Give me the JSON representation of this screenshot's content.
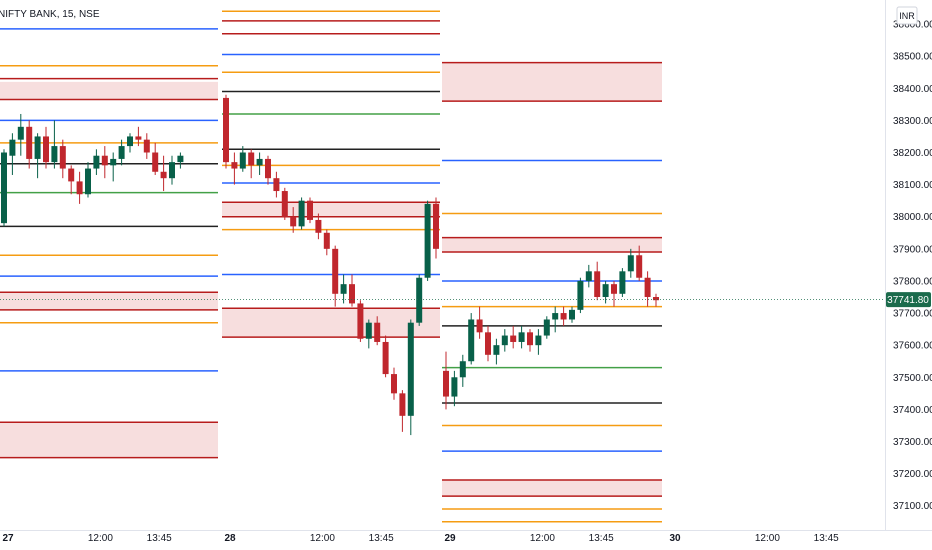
{
  "symbol": "NIFTY BANK, 15, NSE",
  "currency": "INR",
  "last_price_label": "37741.80",
  "colors": {
    "up": "#086049",
    "down": "#c0272d",
    "wick": "#131722",
    "orange": "#f59c12",
    "red": "#b71c1c",
    "blue": "#2962ff",
    "green": "#43a047",
    "black": "#222222",
    "zone": "#f7dede",
    "grid": "#e0e3eb",
    "last_price": "#1b6b4c"
  },
  "chart_data": {
    "type": "candlestick",
    "last_price": 37741.8,
    "ylim": [
      37040,
      38650
    ],
    "y_ticks": [
      "38600.00",
      "38500.00",
      "38400.00",
      "38300.00",
      "38200.00",
      "38100.00",
      "38000.00",
      "37900.00",
      "37800.00",
      "37700.00",
      "37600.00",
      "37500.00",
      "37400.00",
      "37300.00",
      "37200.00",
      "37100.00"
    ],
    "x_ticks": [
      {
        "label": "27",
        "session": 0,
        "bar": 0
      },
      {
        "label": "12:00",
        "session": 0,
        "bar": 11
      },
      {
        "label": "13:45",
        "session": 0,
        "bar": 18
      },
      {
        "label": "28",
        "session": 1,
        "bar": 0
      },
      {
        "label": "12:00",
        "session": 1,
        "bar": 11
      },
      {
        "label": "13:45",
        "session": 1,
        "bar": 18
      },
      {
        "label": "29",
        "session": 2,
        "bar": 0
      },
      {
        "label": "12:00",
        "session": 2,
        "bar": 11
      },
      {
        "label": "13:45",
        "session": 2,
        "bar": 18
      },
      {
        "label": "30",
        "session": 3,
        "bar": 0
      },
      {
        "label": "12:00",
        "session": 3,
        "bar": 11
      },
      {
        "label": "13:45",
        "session": 3,
        "bar": 18
      }
    ],
    "sessions": [
      {
        "date": "27",
        "candles": [
          [
            37980,
            38210,
            37970,
            38200
          ],
          [
            38190,
            38260,
            38130,
            38240
          ],
          [
            38240,
            38320,
            38190,
            38280
          ],
          [
            38280,
            38300,
            38150,
            38180
          ],
          [
            38180,
            38260,
            38120,
            38250
          ],
          [
            38250,
            38280,
            38150,
            38170
          ],
          [
            38170,
            38300,
            38150,
            38220
          ],
          [
            38220,
            38240,
            38120,
            38150
          ],
          [
            38150,
            38160,
            38070,
            38110
          ],
          [
            38110,
            38140,
            38040,
            38070
          ],
          [
            38070,
            38170,
            38060,
            38150
          ],
          [
            38150,
            38210,
            38130,
            38190
          ],
          [
            38190,
            38220,
            38120,
            38160
          ],
          [
            38160,
            38200,
            38110,
            38180
          ],
          [
            38180,
            38240,
            38160,
            38220
          ],
          [
            38220,
            38260,
            38200,
            38250
          ],
          [
            38250,
            38280,
            38220,
            38240
          ],
          [
            38240,
            38260,
            38180,
            38200
          ],
          [
            38200,
            38230,
            38130,
            38140
          ],
          [
            38140,
            38190,
            38080,
            38120
          ],
          [
            38120,
            38190,
            38100,
            38170
          ],
          [
            38170,
            38200,
            38150,
            38190
          ]
        ],
        "zones": [
          {
            "from": 38420,
            "to": 38365
          },
          {
            "from": 37765,
            "to": 37710
          },
          {
            "from": 37360,
            "to": 37250
          }
        ],
        "lines": [
          {
            "price": 38585,
            "color": "blue"
          },
          {
            "price": 38470,
            "color": "orange"
          },
          {
            "price": 38430,
            "color": "red"
          },
          {
            "price": 38365,
            "color": "red"
          },
          {
            "price": 38300,
            "color": "blue"
          },
          {
            "price": 38230,
            "color": "orange"
          },
          {
            "price": 38165,
            "color": "black"
          },
          {
            "price": 38075,
            "color": "green"
          },
          {
            "price": 37970,
            "color": "black"
          },
          {
            "price": 37880,
            "color": "orange"
          },
          {
            "price": 37815,
            "color": "blue"
          },
          {
            "price": 37765,
            "color": "red"
          },
          {
            "price": 37710,
            "color": "red"
          },
          {
            "price": 37670,
            "color": "orange"
          },
          {
            "price": 37520,
            "color": "blue"
          },
          {
            "price": 37360,
            "color": "red"
          },
          {
            "price": 37250,
            "color": "red"
          }
        ]
      },
      {
        "date": "28",
        "candles": [
          [
            38370,
            38380,
            38150,
            38170
          ],
          [
            38170,
            38200,
            38100,
            38150
          ],
          [
            38150,
            38220,
            38140,
            38200
          ],
          [
            38200,
            38210,
            38120,
            38160
          ],
          [
            38160,
            38200,
            38130,
            38180
          ],
          [
            38180,
            38190,
            38100,
            38120
          ],
          [
            38120,
            38140,
            38060,
            38080
          ],
          [
            38080,
            38090,
            37990,
            38000
          ],
          [
            38000,
            38030,
            37950,
            37970
          ],
          [
            37970,
            38060,
            37960,
            38050
          ],
          [
            38050,
            38060,
            37980,
            37990
          ],
          [
            37990,
            38010,
            37930,
            37950
          ],
          [
            37950,
            37960,
            37880,
            37900
          ],
          [
            37900,
            37910,
            37720,
            37760
          ],
          [
            37760,
            37820,
            37730,
            37790
          ],
          [
            37790,
            37820,
            37720,
            37730
          ],
          [
            37730,
            37740,
            37610,
            37620
          ],
          [
            37620,
            37680,
            37590,
            37670
          ],
          [
            37670,
            37690,
            37600,
            37610
          ],
          [
            37610,
            37630,
            37500,
            37510
          ],
          [
            37510,
            37530,
            37430,
            37450
          ],
          [
            37450,
            37460,
            37330,
            37380
          ],
          [
            37380,
            37680,
            37320,
            37670
          ],
          [
            37670,
            37820,
            37660,
            37810
          ],
          [
            37810,
            38050,
            37800,
            38040
          ],
          [
            38040,
            38060,
            37870,
            37900
          ]
        ],
        "zones": [
          {
            "from": 38045,
            "to": 38000
          },
          {
            "from": 37715,
            "to": 37625
          }
        ],
        "lines": [
          {
            "price": 38640,
            "color": "orange"
          },
          {
            "price": 38610,
            "color": "red"
          },
          {
            "price": 38570,
            "color": "red"
          },
          {
            "price": 38505,
            "color": "blue"
          },
          {
            "price": 38450,
            "color": "orange"
          },
          {
            "price": 38390,
            "color": "black"
          },
          {
            "price": 38320,
            "color": "green"
          },
          {
            "price": 38210,
            "color": "black"
          },
          {
            "price": 38160,
            "color": "orange"
          },
          {
            "price": 38105,
            "color": "blue"
          },
          {
            "price": 38045,
            "color": "red"
          },
          {
            "price": 38000,
            "color": "red"
          },
          {
            "price": 37960,
            "color": "orange"
          },
          {
            "price": 37820,
            "color": "blue"
          },
          {
            "price": 37715,
            "color": "red"
          },
          {
            "price": 37625,
            "color": "red"
          }
        ]
      },
      {
        "date": "29",
        "candles": [
          [
            37520,
            37580,
            37400,
            37440
          ],
          [
            37440,
            37520,
            37410,
            37500
          ],
          [
            37500,
            37570,
            37470,
            37550
          ],
          [
            37550,
            37700,
            37540,
            37680
          ],
          [
            37680,
            37720,
            37620,
            37640
          ],
          [
            37640,
            37660,
            37550,
            37570
          ],
          [
            37570,
            37620,
            37540,
            37600
          ],
          [
            37600,
            37650,
            37580,
            37630
          ],
          [
            37630,
            37660,
            37590,
            37610
          ],
          [
            37610,
            37660,
            37590,
            37640
          ],
          [
            37640,
            37650,
            37580,
            37600
          ],
          [
            37600,
            37650,
            37570,
            37630
          ],
          [
            37630,
            37690,
            37620,
            37680
          ],
          [
            37680,
            37720,
            37640,
            37700
          ],
          [
            37700,
            37720,
            37660,
            37680
          ],
          [
            37680,
            37720,
            37670,
            37710
          ],
          [
            37710,
            37810,
            37700,
            37800
          ],
          [
            37800,
            37850,
            37780,
            37830
          ],
          [
            37830,
            37860,
            37740,
            37750
          ],
          [
            37750,
            37800,
            37730,
            37790
          ],
          [
            37790,
            37800,
            37720,
            37760
          ],
          [
            37760,
            37840,
            37750,
            37830
          ],
          [
            37830,
            37900,
            37810,
            37880
          ],
          [
            37880,
            37910,
            37800,
            37810
          ],
          [
            37810,
            37830,
            37720,
            37750
          ],
          [
            37750,
            37760,
            37720,
            37740
          ]
        ],
        "zones": [
          {
            "from": 38480,
            "to": 38360
          },
          {
            "from": 37935,
            "to": 37890
          },
          {
            "from": 37180,
            "to": 37130
          }
        ],
        "lines": [
          {
            "price": 38480,
            "color": "red"
          },
          {
            "price": 38360,
            "color": "red"
          },
          {
            "price": 38175,
            "color": "blue"
          },
          {
            "price": 38010,
            "color": "orange"
          },
          {
            "price": 37935,
            "color": "red"
          },
          {
            "price": 37890,
            "color": "red"
          },
          {
            "price": 37800,
            "color": "blue"
          },
          {
            "price": 37720,
            "color": "orange"
          },
          {
            "price": 37660,
            "color": "black"
          },
          {
            "price": 37530,
            "color": "green"
          },
          {
            "price": 37420,
            "color": "black"
          },
          {
            "price": 37350,
            "color": "orange"
          },
          {
            "price": 37270,
            "color": "blue"
          },
          {
            "price": 37180,
            "color": "red"
          },
          {
            "price": 37130,
            "color": "red"
          },
          {
            "price": 37090,
            "color": "orange"
          },
          {
            "price": 37050,
            "color": "orange"
          }
        ]
      }
    ]
  }
}
